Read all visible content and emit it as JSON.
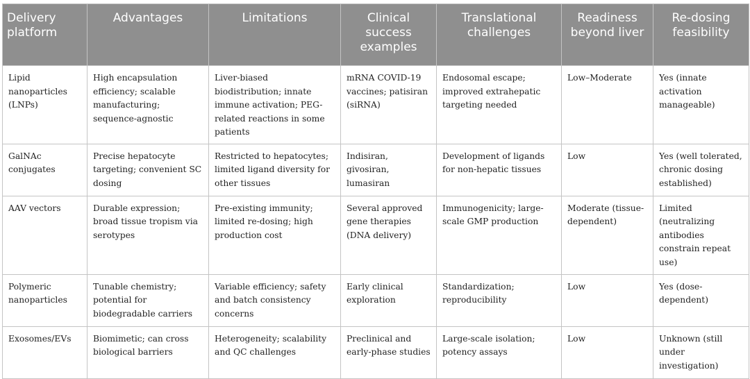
{
  "headers": [
    "Delivery platform",
    "Advantages",
    "Limitations",
    "Clinical success examples",
    "Translational challenges",
    "Readiness beyond liver",
    "Re-dosing feasibility"
  ],
  "rows": [
    [
      "Lipid nanoparticles (LNPs)",
      "High encapsulation efficiency; scalable manufacturing; sequence-agnostic",
      "Liver-biased biodistribution; innate immune activation; PEG-related reactions in some patients",
      "mRNA COVID-19 vaccines; patisiran (siRNA)",
      "Endosomal escape; improved extrahepatic targeting needed",
      "Low–Moderate",
      "Yes (innate activation manageable)"
    ],
    [
      "GalNAc conjugates",
      "Precise hepatocyte targeting; convenient SC dosing",
      "Restricted to hepatocytes; limited ligand diversity for other tissues",
      "Indisiran, givosiran, lumasiran",
      "Development of ligands for non-hepatic tissues",
      "Low",
      "Yes (well tolerated, chronic dosing established)"
    ],
    [
      "AAV vectors",
      "Durable expression; broad tissue tropism via serotypes",
      "Pre-existing immunity; limited re-dosing; high production cost",
      "Several approved gene therapies (DNA delivery)",
      "Immunogenicity; large-scale GMP production",
      "Moderate (tissue-dependent)",
      "Limited (neutralizing antibodies constrain repeat use)"
    ],
    [
      "Polymeric nanoparticles",
      "Tunable chemistry; potential for biodegradable carriers",
      "Variable efficiency; safety and batch consistency concerns",
      "Early clinical exploration",
      "Standardization; reproducibility",
      "Low",
      "Yes (dose-dependent)"
    ],
    [
      "Exosomes/EVs",
      "Biomimetic; can cross biological barriers",
      "Heterogeneity; scalability and QC challenges",
      "Preclinical and early-phase studies",
      "Large-scale isolation; potency assays",
      "Low",
      "Unknown (still under investigation)"
    ]
  ]
}
